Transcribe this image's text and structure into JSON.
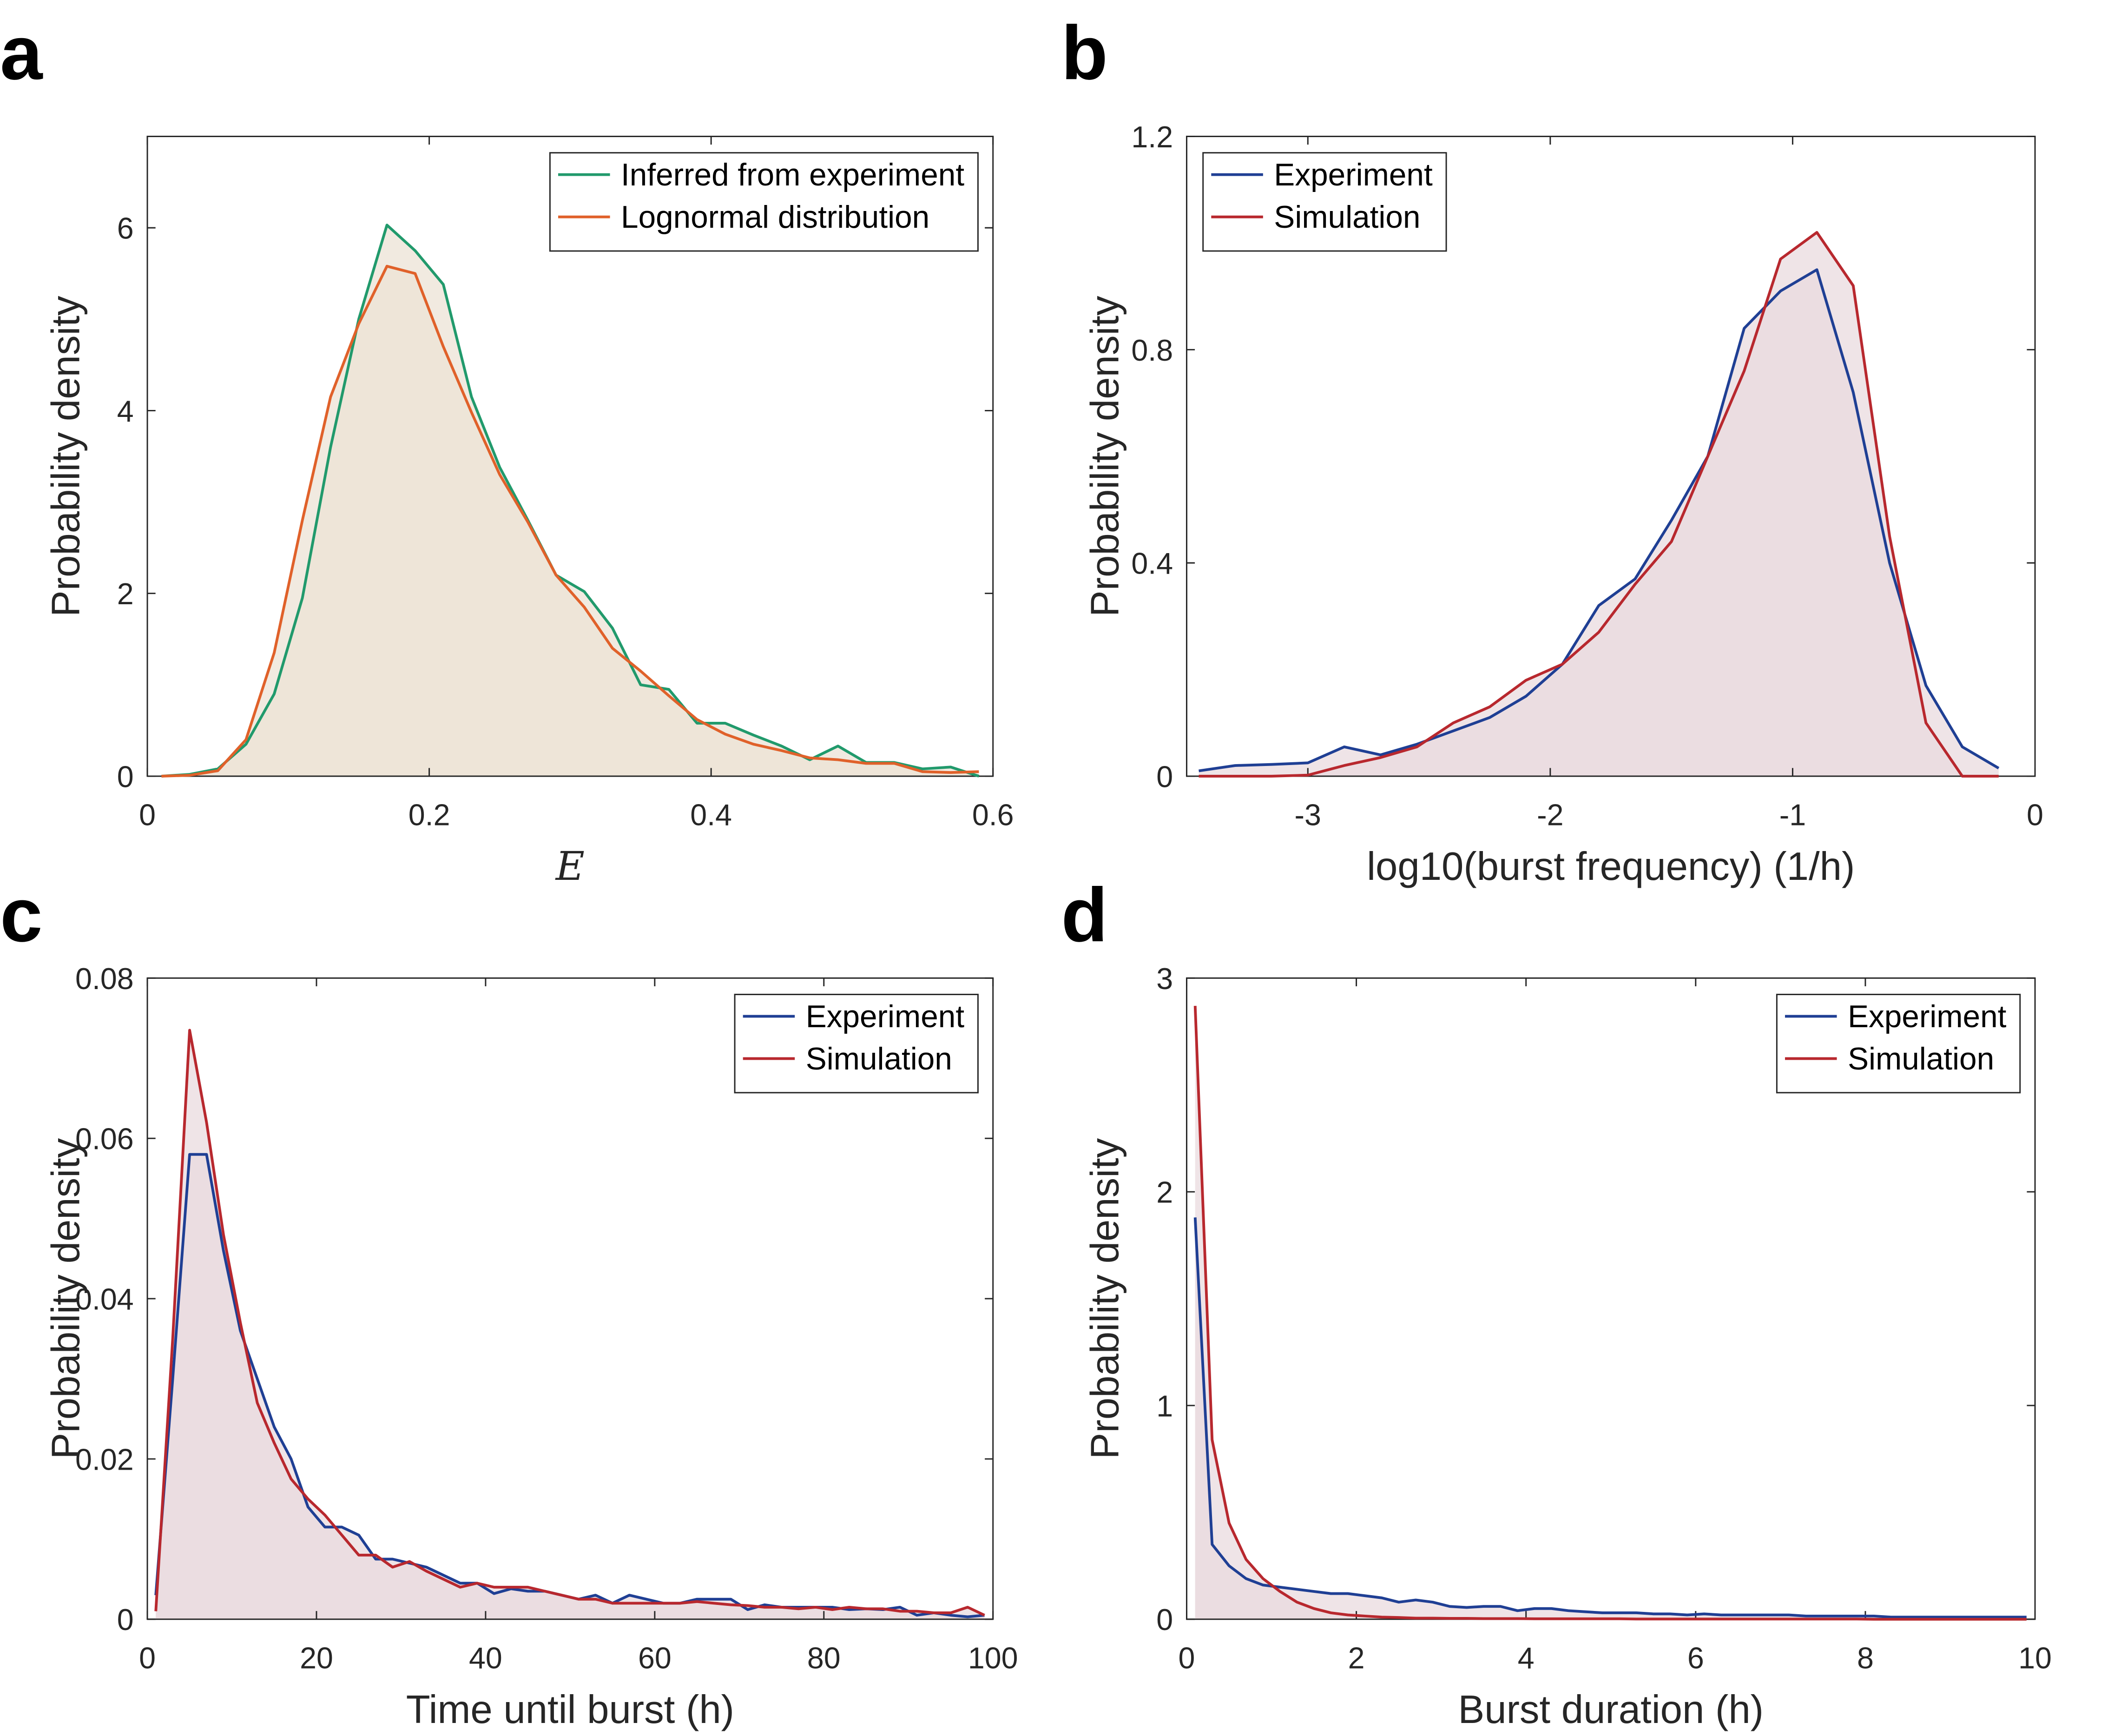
{
  "chart_data": [
    {
      "type": "line",
      "panel_label": "a",
      "ylabel": "Probability density",
      "xlabel": "E",
      "xlim": [
        0,
        0.6
      ],
      "ylim": [
        0,
        7
      ],
      "xticks": [
        0,
        0.2,
        0.4,
        0.6
      ],
      "yticks": [
        0,
        2,
        4,
        6
      ],
      "legend": "top-right",
      "fill": "#ece3d5",
      "x": [
        0.01,
        0.03,
        0.05,
        0.07,
        0.09,
        0.11,
        0.13,
        0.15,
        0.17,
        0.19,
        0.21,
        0.23,
        0.25,
        0.27,
        0.29,
        0.31,
        0.33,
        0.35,
        0.37,
        0.39,
        0.41,
        0.43,
        0.45,
        0.47,
        0.49,
        0.51,
        0.53,
        0.55,
        0.57,
        0.59
      ],
      "series": [
        {
          "name": "Inferred from experiment",
          "color": "#219a6c",
          "values": [
            0,
            0.02,
            0.08,
            0.35,
            0.9,
            1.95,
            3.6,
            5.0,
            6.03,
            5.75,
            5.38,
            4.15,
            3.38,
            2.8,
            2.2,
            2.02,
            1.62,
            1.0,
            0.95,
            0.58,
            0.58,
            0.45,
            0.33,
            0.18,
            0.33,
            0.15,
            0.15,
            0.08,
            0.1,
            0
          ]
        },
        {
          "name": "Lognormal distribution",
          "color": "#e0612a",
          "values": [
            0,
            0.01,
            0.06,
            0.4,
            1.35,
            2.8,
            4.15,
            4.95,
            5.58,
            5.5,
            4.7,
            3.98,
            3.3,
            2.78,
            2.2,
            1.85,
            1.4,
            1.15,
            0.88,
            0.62,
            0.46,
            0.35,
            0.28,
            0.2,
            0.18,
            0.14,
            0.14,
            0.05,
            0.04,
            0.05
          ]
        }
      ]
    },
    {
      "type": "line",
      "panel_label": "b",
      "ylabel": "Probability density",
      "xlabel": "log10(burst frequency) (1/h)",
      "xlim": [
        -3.5,
        0
      ],
      "ylim": [
        0,
        1.2
      ],
      "xticks": [
        -3,
        -2,
        -1,
        0
      ],
      "yticks": [
        0,
        0.4,
        0.8,
        1.2
      ],
      "legend": "top-left",
      "fill": "#e9dbdf",
      "x": [
        -3.45,
        -3.3,
        -3.15,
        -3.0,
        -2.85,
        -2.7,
        -2.55,
        -2.4,
        -2.25,
        -2.1,
        -1.95,
        -1.8,
        -1.65,
        -1.5,
        -1.35,
        -1.2,
        -1.05,
        -0.9,
        -0.75,
        -0.6,
        -0.45,
        -0.3,
        -0.15
      ],
      "series": [
        {
          "name": "Experiment",
          "color": "#1f3f94",
          "values": [
            0.01,
            0.02,
            0.022,
            0.025,
            0.055,
            0.04,
            0.06,
            0.085,
            0.11,
            0.15,
            0.21,
            0.32,
            0.37,
            0.48,
            0.6,
            0.84,
            0.91,
            0.95,
            0.72,
            0.4,
            0.17,
            0.055,
            0.015
          ]
        },
        {
          "name": "Simulation",
          "color": "#b8282e",
          "values": [
            0,
            0,
            0,
            0.002,
            0.02,
            0.035,
            0.055,
            0.1,
            0.13,
            0.18,
            0.21,
            0.27,
            0.36,
            0.44,
            0.6,
            0.76,
            0.97,
            1.02,
            0.92,
            0.45,
            0.1,
            0,
            0
          ]
        }
      ]
    },
    {
      "type": "line",
      "panel_label": "c",
      "ylabel": "Probability density",
      "xlabel": "Time until burst (h)",
      "xlim": [
        0,
        100
      ],
      "ylim": [
        0,
        0.08
      ],
      "xticks": [
        0,
        20,
        40,
        60,
        80,
        100
      ],
      "yticks": [
        0,
        0.02,
        0.04,
        0.06,
        0.08
      ],
      "legend": "top-right",
      "fill": "#e9dbdf",
      "x": [
        1,
        3,
        5,
        7,
        9,
        11,
        13,
        15,
        17,
        19,
        21,
        23,
        25,
        27,
        29,
        31,
        33,
        35,
        37,
        39,
        41,
        43,
        45,
        47,
        49,
        51,
        53,
        55,
        57,
        59,
        61,
        63,
        65,
        67,
        69,
        71,
        73,
        75,
        77,
        79,
        81,
        83,
        85,
        87,
        89,
        91,
        93,
        95,
        97,
        99
      ],
      "series": [
        {
          "name": "Experiment",
          "color": "#1f3f94",
          "values": [
            0.003,
            0.03,
            0.058,
            0.058,
            0.046,
            0.036,
            0.03,
            0.024,
            0.02,
            0.014,
            0.0115,
            0.0115,
            0.0105,
            0.0075,
            0.0075,
            0.007,
            0.0065,
            0.0055,
            0.0045,
            0.0045,
            0.0032,
            0.0038,
            0.0035,
            0.0035,
            0.003,
            0.0025,
            0.003,
            0.002,
            0.003,
            0.0025,
            0.002,
            0.002,
            0.0025,
            0.0025,
            0.0025,
            0.0012,
            0.0018,
            0.0015,
            0.0015,
            0.0015,
            0.0015,
            0.0012,
            0.0013,
            0.0012,
            0.0015,
            0.0005,
            0.0008,
            0.0005,
            0.0003,
            0.0005
          ]
        },
        {
          "name": "Simulation",
          "color": "#b8282e",
          "values": [
            0.001,
            0.035,
            0.0735,
            0.062,
            0.048,
            0.037,
            0.027,
            0.022,
            0.0175,
            0.015,
            0.013,
            0.0105,
            0.008,
            0.008,
            0.0065,
            0.0072,
            0.006,
            0.005,
            0.004,
            0.0045,
            0.004,
            0.004,
            0.004,
            0.0035,
            0.003,
            0.0025,
            0.0025,
            0.002,
            0.002,
            0.002,
            0.002,
            0.002,
            0.0022,
            0.002,
            0.0018,
            0.0017,
            0.0015,
            0.0015,
            0.0013,
            0.0015,
            0.0012,
            0.0015,
            0.0013,
            0.0013,
            0.001,
            0.001,
            0.0008,
            0.0008,
            0.0015,
            0.0005
          ]
        }
      ]
    },
    {
      "type": "line",
      "panel_label": "d",
      "ylabel": "Probability density",
      "xlabel": "Burst duration (h)",
      "xlim": [
        0,
        10
      ],
      "ylim": [
        0,
        3
      ],
      "xticks": [
        0,
        2,
        4,
        6,
        8,
        10
      ],
      "yticks": [
        0,
        1,
        2,
        3
      ],
      "legend": "top-right",
      "fill": "#e9dbdf",
      "x": [
        0.1,
        0.3,
        0.5,
        0.7,
        0.9,
        1.1,
        1.3,
        1.5,
        1.7,
        1.9,
        2.1,
        2.3,
        2.5,
        2.7,
        2.9,
        3.1,
        3.3,
        3.5,
        3.7,
        3.9,
        4.1,
        4.3,
        4.5,
        4.7,
        4.9,
        5.1,
        5.3,
        5.5,
        5.7,
        5.9,
        6.1,
        6.3,
        6.5,
        6.7,
        6.9,
        7.1,
        7.3,
        7.5,
        7.7,
        7.9,
        8.1,
        8.3,
        8.5,
        8.7,
        8.9,
        9.1,
        9.3,
        9.5,
        9.7,
        9.9
      ],
      "series": [
        {
          "name": "Experiment",
          "color": "#1f3f94",
          "values": [
            1.88,
            0.35,
            0.25,
            0.19,
            0.16,
            0.15,
            0.14,
            0.13,
            0.12,
            0.12,
            0.11,
            0.1,
            0.08,
            0.09,
            0.08,
            0.06,
            0.055,
            0.06,
            0.06,
            0.04,
            0.05,
            0.05,
            0.04,
            0.035,
            0.03,
            0.03,
            0.03,
            0.025,
            0.025,
            0.02,
            0.025,
            0.02,
            0.02,
            0.02,
            0.02,
            0.02,
            0.015,
            0.015,
            0.015,
            0.015,
            0.015,
            0.01,
            0.01,
            0.01,
            0.01,
            0.01,
            0.01,
            0.01,
            0.01,
            0.01
          ]
        },
        {
          "name": "Simulation",
          "color": "#b8282e",
          "values": [
            2.87,
            0.84,
            0.45,
            0.28,
            0.19,
            0.13,
            0.08,
            0.05,
            0.03,
            0.02,
            0.015,
            0.01,
            0.008,
            0.005,
            0.005,
            0.004,
            0.004,
            0.003,
            0.003,
            0.003,
            0.002,
            0.002,
            0.002,
            0.002,
            0.002,
            0.002,
            0.001,
            0.001,
            0.001,
            0.001,
            0.001,
            0.001,
            0.001,
            0.001,
            0.001,
            0.001,
            0.001,
            0.001,
            0.001,
            0.001,
            0,
            0,
            0,
            0,
            0,
            0,
            0,
            0,
            0,
            0
          ]
        }
      ]
    }
  ]
}
